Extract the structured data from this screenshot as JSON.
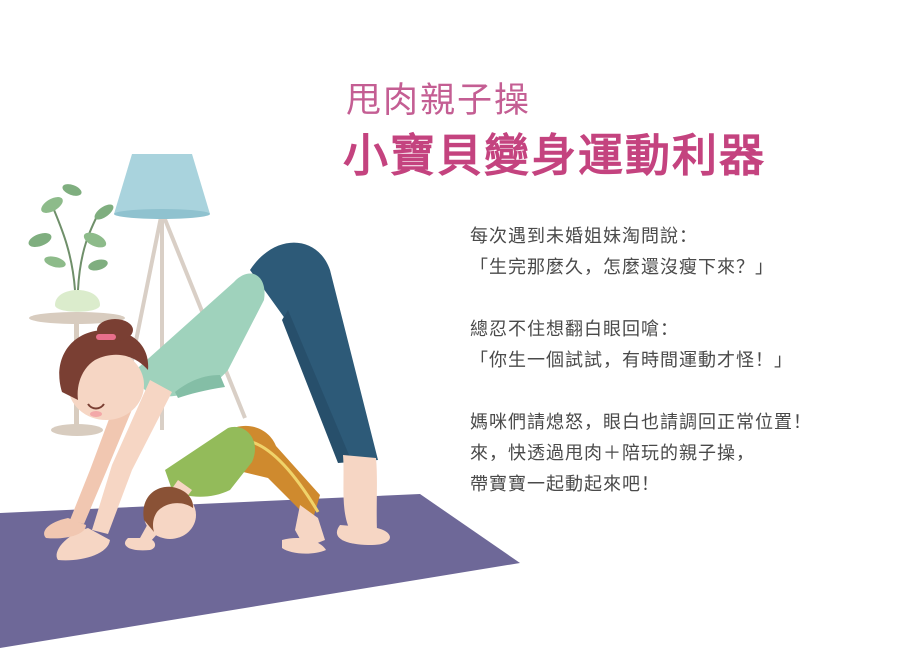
{
  "header": {
    "subtitle": "甩肉親子操",
    "title": "小寶貝變身運動利器"
  },
  "body": {
    "paragraphs": [
      {
        "lines": [
          "每次遇到未婚姐妹淘問說：",
          "「生完那麼久，怎麼還沒瘦下來？」"
        ]
      },
      {
        "lines": [
          "總忍不住想翻白眼回嗆：",
          "「你生一個試試，有時間運動才怪！」"
        ]
      },
      {
        "lines": [
          "媽咪們請熄怒，眼白也請調回正常位置！",
          "來，快透過甩肉＋陪玩的親子操，",
          "帶寶寶一起動起來吧！"
        ]
      }
    ]
  },
  "illustration": {
    "colors": {
      "mat": "#6e6898",
      "lamp_shade": "#a9d3dd",
      "mom_shirt": "#9fd2bc",
      "mom_pants": "#2d5a78",
      "kid_shirt": "#93bb5a",
      "kid_pants": "#cf8a2e",
      "skin": "#f6d6c4",
      "hair": "#7a3f33",
      "plant": "#7fae7f",
      "title_pink": "#c4437f"
    }
  }
}
